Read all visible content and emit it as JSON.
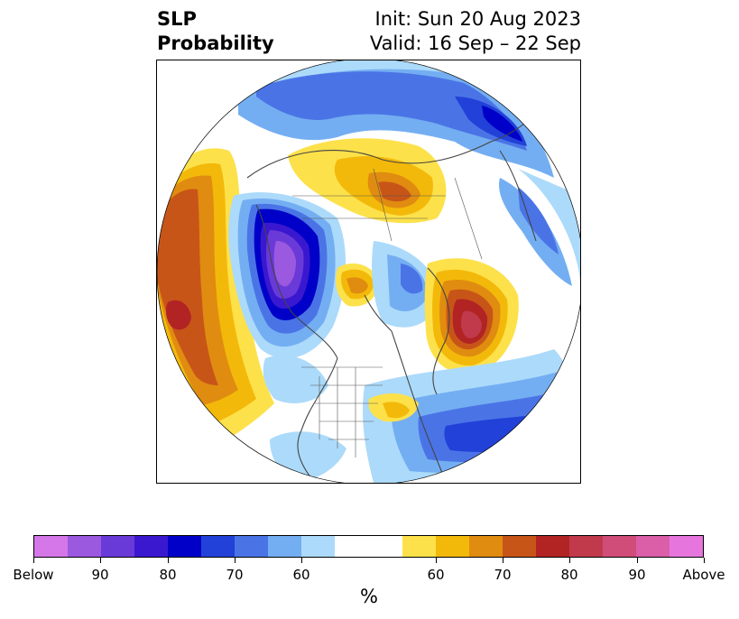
{
  "title": {
    "left_line1": "SLP",
    "left_line2": "Probability",
    "right_line1": "Init: Sun 20 Aug 2023",
    "right_line2": "Valid: 16 Sep – 22 Sep"
  },
  "map": {
    "projection": "polar-stereographic",
    "region": "Northern Hemisphere (North America / Arctic / North Atlantic)",
    "features": [
      "coastlines",
      "country-borders",
      "state-borders"
    ]
  },
  "colorbar": {
    "unit_label": "%",
    "tick_labels": [
      "Below",
      "90",
      "80",
      "70",
      "60",
      "60",
      "70",
      "80",
      "90",
      "Above"
    ],
    "below_colors": [
      "#d577e8",
      "#9b59e0",
      "#6a3ad8",
      "#3a18d0",
      "#0000c8",
      "#2241d8",
      "#4a74e6",
      "#74aef2",
      "#acdafa"
    ],
    "neutral_color": "#ffffff",
    "above_colors": [
      "#fde14a",
      "#f3b90a",
      "#e08c10",
      "#c85518",
      "#b22424",
      "#c03a4c",
      "#cf4d78",
      "#db5ea8",
      "#e676de"
    ]
  }
}
